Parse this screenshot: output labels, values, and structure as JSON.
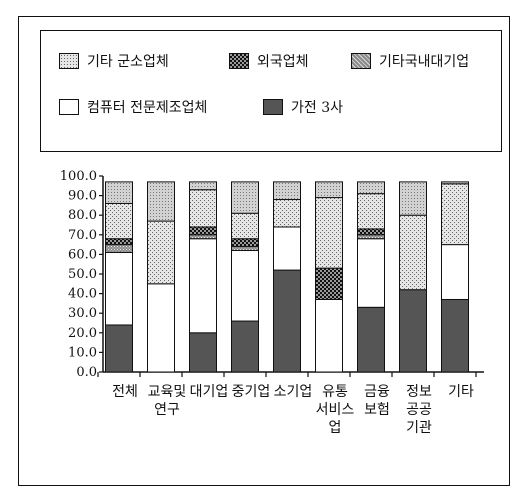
{
  "chart_data": {
    "type": "bar",
    "stacked": true,
    "categories": [
      [
        "전체"
      ],
      [
        "교육및",
        "연구"
      ],
      [
        "대기업"
      ],
      [
        "중기업"
      ],
      [
        "소기업"
      ],
      [
        "유통",
        "서비스",
        "업"
      ],
      [
        "금융",
        "보험"
      ],
      [
        "정보",
        "공공",
        "기관"
      ],
      [
        "기타"
      ]
    ],
    "series": [
      {
        "name": "가전 3사",
        "key": "gajeon",
        "values": [
          24,
          0,
          20,
          26,
          52,
          0,
          33,
          42,
          37
        ]
      },
      {
        "name": "컴퓨터 전문제조업체",
        "key": "computer",
        "values": [
          37,
          45,
          48,
          36,
          22,
          37,
          35,
          0,
          28
        ]
      },
      {
        "name": "기타국내대기업",
        "key": "domestic",
        "values": [
          4,
          0,
          2,
          2,
          0,
          0,
          2,
          0,
          0
        ]
      },
      {
        "name": "외국업체",
        "key": "foreign",
        "values": [
          3,
          0,
          4,
          4,
          0,
          16,
          3,
          0,
          0
        ]
      },
      {
        "name": "기타 군소업체",
        "key": "small",
        "values": [
          18,
          32,
          19,
          13,
          14,
          36,
          18,
          38,
          31
        ]
      },
      {
        "name": "",
        "key": "top",
        "values": [
          11,
          20,
          4,
          16,
          9,
          8,
          6,
          17,
          1
        ]
      }
    ],
    "ylim": [
      0,
      100
    ],
    "yticks": [
      "0.0",
      "10.0",
      "20.0",
      "30.0",
      "40.0",
      "50.0",
      "60.0",
      "70.0",
      "80.0",
      "90.0",
      "100.0"
    ],
    "legend_placement": "top",
    "grid": false
  },
  "legend": [
    {
      "label": "기타  군소업체",
      "key": "small"
    },
    {
      "label": "외국업체",
      "key": "foreign"
    },
    {
      "label": "기타국내대기업",
      "key": "domestic"
    },
    {
      "label": "컴퓨터  전문제조업체",
      "key": "computer"
    },
    {
      "label": "가전  3사",
      "key": "gajeon"
    }
  ]
}
